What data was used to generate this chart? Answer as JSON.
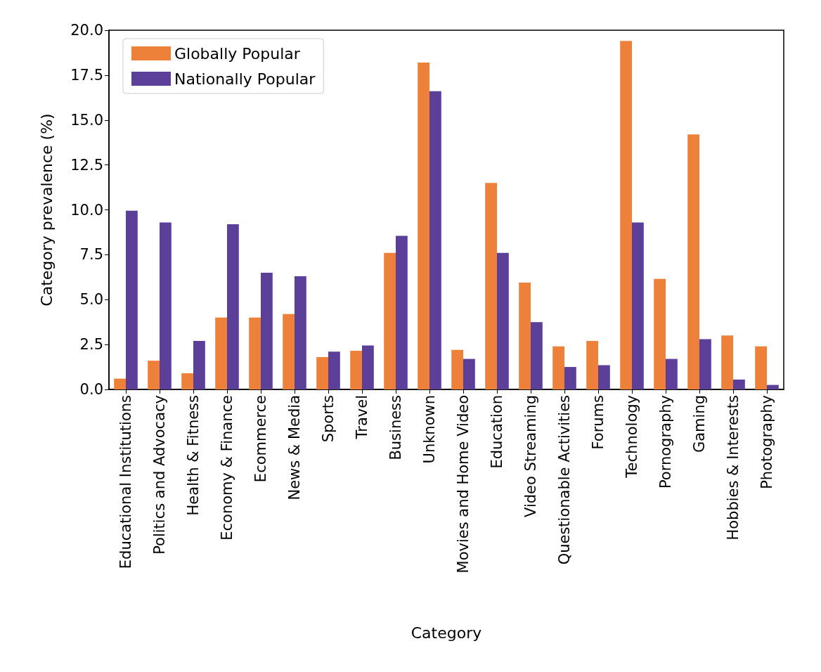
{
  "chart_data": {
    "type": "bar",
    "xlabel": "Category",
    "ylabel": "Category prevalence (%)",
    "categories": [
      "Educational Institutions",
      "Politics and Advocacy",
      "Health & Fitness",
      "Economy & Finance",
      "Ecommerce",
      "News & Media",
      "Sports",
      "Travel",
      "Business",
      "Unknown",
      "Movies and Home Video",
      "Education",
      "Video Streaming",
      "Questionable Activities",
      "Forums",
      "Technology",
      "Pornography",
      "Gaming",
      "Hobbies & Interests",
      "Photography"
    ],
    "series": [
      {
        "name": "Globally Popular",
        "color": "#ed8139",
        "values": [
          0.6,
          1.6,
          0.9,
          4.0,
          4.0,
          4.2,
          1.8,
          2.15,
          7.6,
          18.2,
          2.2,
          11.5,
          5.95,
          2.4,
          2.7,
          19.4,
          6.15,
          14.2,
          3.0,
          2.4
        ]
      },
      {
        "name": "Nationally Popular",
        "color": "#5b3f99",
        "values": [
          9.95,
          9.3,
          2.7,
          9.2,
          6.5,
          6.3,
          2.1,
          2.45,
          8.55,
          16.6,
          1.7,
          7.6,
          3.75,
          1.25,
          1.35,
          9.3,
          1.7,
          2.8,
          0.55,
          0.25
        ]
      }
    ],
    "ylim": [
      0,
      20
    ],
    "yticks": [
      {
        "value": 0,
        "label": "0.0"
      },
      {
        "value": 2.5,
        "label": "2.5"
      },
      {
        "value": 5,
        "label": "5.0"
      },
      {
        "value": 7.5,
        "label": "7.5"
      },
      {
        "value": 10,
        "label": "10.0"
      },
      {
        "value": 12.5,
        "label": "12.5"
      },
      {
        "value": 15,
        "label": "15.0"
      },
      {
        "value": 17.5,
        "label": "17.5"
      },
      {
        "value": 20,
        "label": "20.0"
      }
    ],
    "grid": false,
    "legend": "top left"
  }
}
